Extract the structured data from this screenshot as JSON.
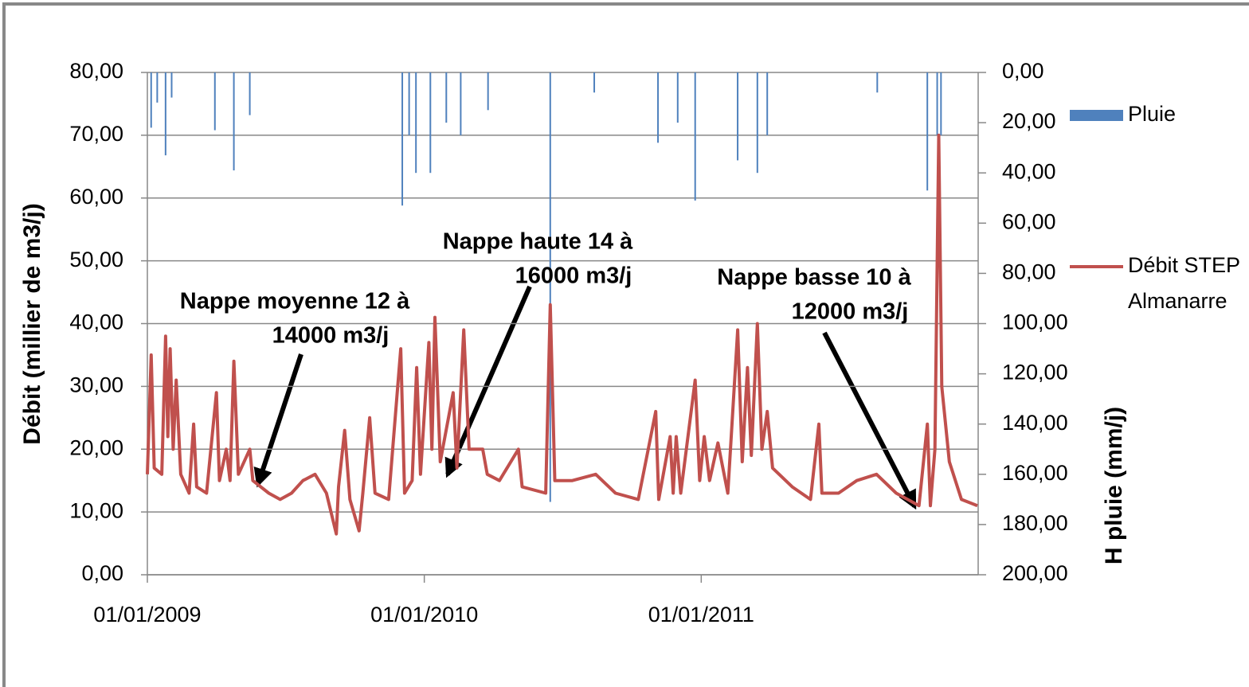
{
  "chart_data": {
    "type": "line",
    "xlim": [
      "2009-01-01",
      "2012-01-01"
    ],
    "xticks": [
      {
        "value": "2009-01-01",
        "label": "01/01/2009"
      },
      {
        "value": "2010-01-01",
        "label": "01/01/2010"
      },
      {
        "value": "2011-01-01",
        "label": "01/01/2011"
      }
    ],
    "ylabel": "Débit (millier de m3/j)",
    "ylim": [
      0,
      80
    ],
    "yticks": [
      {
        "value": 0,
        "label": "0,00"
      },
      {
        "value": 10,
        "label": "10,00"
      },
      {
        "value": 20,
        "label": "20,00"
      },
      {
        "value": 30,
        "label": "30,00"
      },
      {
        "value": 40,
        "label": "40,00"
      },
      {
        "value": 50,
        "label": "50,00"
      },
      {
        "value": 60,
        "label": "60,00"
      },
      {
        "value": 70,
        "label": "70,00"
      },
      {
        "value": 80,
        "label": "80,00"
      }
    ],
    "y2label": "H pluie (mm/j)",
    "y2lim": [
      0,
      200
    ],
    "y2_reversed": true,
    "y2ticks": [
      {
        "value": 0,
        "label": "0,00"
      },
      {
        "value": 20,
        "label": "20,00"
      },
      {
        "value": 40,
        "label": "40,00"
      },
      {
        "value": 60,
        "label": "60,00"
      },
      {
        "value": 80,
        "label": "80,00"
      },
      {
        "value": 100,
        "label": "100,00"
      },
      {
        "value": 120,
        "label": "120,00"
      },
      {
        "value": 140,
        "label": "140,00"
      },
      {
        "value": 160,
        "label": "160,00"
      },
      {
        "value": 180,
        "label": "180,00"
      },
      {
        "value": 200,
        "label": "200,00"
      }
    ],
    "grid": true,
    "legend": "right",
    "series": [
      {
        "name": "Pluie",
        "type": "bar",
        "axis": "y2",
        "color": "#4f81bd",
        "x": [
          "2009-01-06",
          "2009-01-14",
          "2009-01-25",
          "2009-02-02",
          "2009-03-31",
          "2009-04-25",
          "2009-05-16",
          "2009-12-03",
          "2009-12-12",
          "2009-12-21",
          "2010-01-09",
          "2010-01-30",
          "2010-02-18",
          "2010-03-26",
          "2010-06-16",
          "2010-08-13",
          "2010-11-05",
          "2010-12-01",
          "2010-12-24",
          "2011-02-18",
          "2011-03-16",
          "2011-03-29",
          "2011-08-21",
          "2011-10-26",
          "2011-11-08",
          "2011-11-13"
        ],
        "values": [
          22,
          12,
          33,
          10,
          23,
          39,
          17,
          53,
          25,
          40,
          40,
          20,
          25,
          15,
          171,
          8,
          28,
          20,
          51,
          35,
          40,
          25,
          8,
          47,
          25,
          25
        ]
      },
      {
        "name": "Débit STEP Almanarre",
        "type": "line",
        "color": "#c0504d",
        "x": [
          "2009-01-01",
          "2009-01-06",
          "2009-01-10",
          "2009-01-20",
          "2009-01-25",
          "2009-01-28",
          "2009-01-31",
          "2009-02-04",
          "2009-02-08",
          "2009-02-14",
          "2009-02-25",
          "2009-03-03",
          "2009-03-07",
          "2009-03-20",
          "2009-04-02",
          "2009-04-06",
          "2009-04-15",
          "2009-04-20",
          "2009-04-25",
          "2009-05-01",
          "2009-05-16",
          "2009-05-20",
          "2009-06-10",
          "2009-06-25",
          "2009-07-10",
          "2009-07-25",
          "2009-08-10",
          "2009-08-25",
          "2009-09-07",
          "2009-09-10",
          "2009-09-18",
          "2009-09-25",
          "2009-10-07",
          "2009-10-12",
          "2009-10-21",
          "2009-10-28",
          "2009-11-15",
          "2009-12-01",
          "2009-12-06",
          "2009-12-16",
          "2009-12-22",
          "2009-12-27",
          "2010-01-07",
          "2010-01-11",
          "2010-01-15",
          "2010-01-22",
          "2010-02-08",
          "2010-02-13",
          "2010-02-22",
          "2010-03-01",
          "2010-03-19",
          "2010-03-25",
          "2010-04-10",
          "2010-05-05",
          "2010-05-10",
          "2010-06-10",
          "2010-06-16",
          "2010-06-22",
          "2010-07-15",
          "2010-08-15",
          "2010-09-10",
          "2010-10-10",
          "2010-11-02",
          "2010-11-06",
          "2010-11-21",
          "2010-11-25",
          "2010-11-29",
          "2010-12-05",
          "2010-12-24",
          "2010-12-30",
          "2011-01-05",
          "2011-01-12",
          "2011-01-23",
          "2011-02-05",
          "2011-02-18",
          "2011-02-24",
          "2011-03-03",
          "2011-03-08",
          "2011-03-16",
          "2011-03-22",
          "2011-03-29",
          "2011-04-05",
          "2011-05-01",
          "2011-05-25",
          "2011-06-05",
          "2011-06-09",
          "2011-07-01",
          "2011-07-25",
          "2011-08-20",
          "2011-09-15",
          "2011-10-15",
          "2011-10-26",
          "2011-10-30",
          "2011-11-05",
          "2011-11-10",
          "2011-11-14",
          "2011-11-24",
          "2011-12-10",
          "2011-12-31"
        ],
        "values": [
          16,
          35,
          17,
          16,
          38,
          22,
          36,
          20,
          31,
          16,
          13,
          24,
          14,
          13,
          29,
          15,
          20,
          15,
          34,
          16,
          20,
          15,
          13,
          12,
          13,
          15,
          16,
          13,
          6.5,
          14,
          23,
          12,
          7,
          13,
          25,
          13,
          12,
          36,
          13,
          15,
          33,
          16,
          37,
          20,
          41,
          18,
          29,
          17,
          39,
          20,
          20,
          16,
          15,
          20,
          14,
          13,
          43,
          15,
          15,
          16,
          13,
          12,
          26,
          12,
          22,
          13,
          22,
          13,
          31,
          15,
          22,
          15,
          21,
          13,
          39,
          18,
          33,
          19,
          40,
          20,
          26,
          17,
          14,
          12,
          24,
          13,
          13,
          15,
          16,
          13,
          11,
          24,
          11,
          20,
          70,
          30,
          18,
          12,
          11
        ]
      }
    ],
    "annotations": [
      {
        "text": [
          "Nappe moyenne 12 à",
          "14000 m3/j"
        ]
      },
      {
        "text": [
          "Nappe haute 14 à",
          "16000 m3/j"
        ]
      },
      {
        "text": [
          "Nappe basse 10 à",
          "12000 m3/j"
        ]
      }
    ]
  }
}
